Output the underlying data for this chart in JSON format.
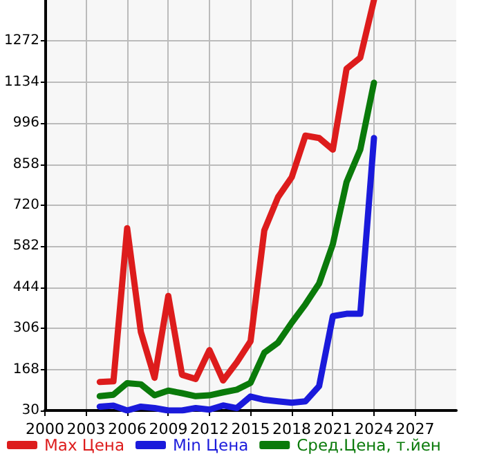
{
  "chart_data": {
    "type": "line",
    "x": [
      2004,
      2005,
      2006,
      2007,
      2008,
      2009,
      2010,
      2011,
      2012,
      2013,
      2014,
      2015,
      2016,
      2017,
      2018,
      2019,
      2020,
      2021,
      2022,
      2023,
      2024
    ],
    "series": [
      {
        "name": "Max Цена",
        "color": "#dd1c1c",
        "values": [
          126,
          128,
          643,
          294,
          140,
          415,
          150,
          136,
          233,
          131,
          192,
          263,
          635,
          747,
          814,
          954,
          946,
          907,
          1179,
          1216,
          1410
        ]
      },
      {
        "name": "Min Цена",
        "color": "#1a1adb",
        "values": [
          43,
          46,
          30,
          43,
          38,
          30,
          30,
          38,
          33,
          47,
          38,
          77,
          66,
          61,
          56,
          61,
          112,
          347,
          355,
          355,
          946
        ]
      },
      {
        "name": "Сред.Цена, т.йен",
        "color": "#0a7a0a",
        "values": [
          78,
          83,
          122,
          118,
          81,
          97,
          88,
          78,
          81,
          91,
          100,
          123,
          224,
          258,
          325,
          387,
          457,
          589,
          798,
          907,
          1132
        ]
      }
    ],
    "xlim": [
      2000,
      2030
    ],
    "xticks": [
      2000,
      2003,
      2006,
      2009,
      2012,
      2015,
      2018,
      2021,
      2024,
      2027
    ],
    "ylim": [
      30,
      1410
    ],
    "yticks": [
      30,
      168,
      306,
      444,
      582,
      720,
      858,
      996,
      1134,
      1272
    ],
    "grid": true,
    "legend": "bottom",
    "marker": "none",
    "line_style": "solid"
  }
}
